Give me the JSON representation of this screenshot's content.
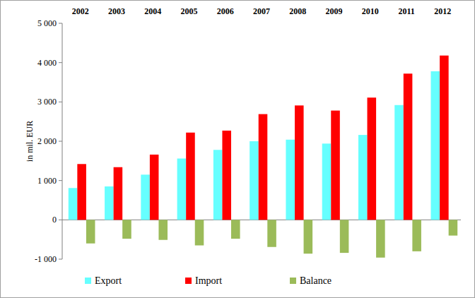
{
  "chart_data": {
    "type": "bar",
    "y_label": "in mil. EUR",
    "categories": [
      "2002",
      "2003",
      "2004",
      "2005",
      "2006",
      "2007",
      "2008",
      "2009",
      "2010",
      "2011",
      "2012"
    ],
    "series": [
      {
        "name": "Export",
        "color": "#66ffff",
        "values": [
          810,
          850,
          1150,
          1560,
          1780,
          2000,
          2040,
          1940,
          2160,
          2920,
          3780
        ]
      },
      {
        "name": "Import",
        "color": "#ff0000",
        "values": [
          1420,
          1340,
          1660,
          2220,
          2270,
          2690,
          2910,
          2780,
          3110,
          3720,
          4180
        ]
      },
      {
        "name": "Balance",
        "color": "#9bbb59",
        "values": [
          -600,
          -480,
          -510,
          -650,
          -480,
          -690,
          -860,
          -840,
          -960,
          -800,
          -400
        ]
      }
    ],
    "ylim": [
      -1000,
      5000
    ],
    "yticks": [
      {
        "value": -1000,
        "label": "-1 000"
      },
      0,
      {
        "value": 1000,
        "label": "1 000"
      },
      {
        "value": 2000,
        "label": "2 000"
      },
      {
        "value": 3000,
        "label": "3 000"
      },
      {
        "value": 4000,
        "label": "4 000"
      },
      {
        "value": 5000,
        "label": "5 000"
      }
    ],
    "grid": false,
    "legend": "bottom"
  }
}
